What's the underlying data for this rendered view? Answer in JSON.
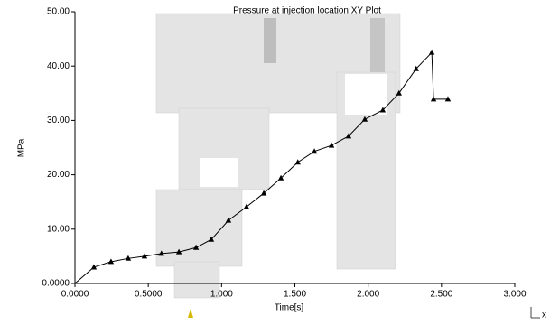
{
  "chart_data": {
    "type": "line",
    "title": "Pressure at injection location:XY Plot",
    "x_label": "Time[s]",
    "y_label": "MPa",
    "triad_label": "x",
    "x": [
      0,
      0.129,
      0.246,
      0.363,
      0.474,
      0.59,
      0.709,
      0.826,
      0.93,
      1.047,
      1.17,
      1.288,
      1.405,
      1.52,
      1.633,
      1.75,
      1.866,
      1.977,
      2.1,
      2.21,
      2.327,
      2.434,
      2.446,
      2.544
    ],
    "series": [
      {
        "color": "#000000",
        "values": [
          0,
          3.0,
          4.0,
          4.6,
          5.0,
          5.5,
          5.8,
          6.6,
          8.1,
          11.6,
          14.1,
          16.6,
          19.4,
          22.3,
          24.3,
          25.4,
          27.1,
          30.2,
          31.9,
          35.0,
          39.5,
          42.5,
          33.9,
          33.9
        ]
      }
    ],
    "xlim": [
      0,
      3
    ],
    "xticks": [
      {
        "value": 0,
        "label": "0.0000"
      },
      {
        "value": 0.5,
        "label": "0.5000"
      },
      {
        "value": 1,
        "label": "1.000"
      },
      {
        "value": 1.5,
        "label": "1.500"
      },
      {
        "value": 2,
        "label": "2.000"
      },
      {
        "value": 2.5,
        "label": "2.500"
      },
      {
        "value": 3,
        "label": "3.000"
      }
    ],
    "ylim": [
      0,
      50
    ],
    "yticks": [
      {
        "value": 0,
        "label": "0.0000"
      },
      {
        "value": 10,
        "label": "10.00"
      },
      {
        "value": 20,
        "label": "20.00"
      },
      {
        "value": 30,
        "label": "30.00"
      },
      {
        "value": 40,
        "label": "40.00"
      },
      {
        "value": 50,
        "label": "50.00"
      }
    ]
  }
}
